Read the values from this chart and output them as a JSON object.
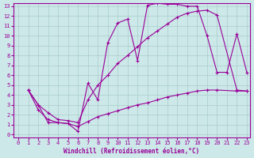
{
  "xlabel": "Windchill (Refroidissement éolien,°C)",
  "bg_color": "#cce8e8",
  "line_color": "#990099",
  "grid_color": "#aacccc",
  "xlim": [
    -0.5,
    23.3
  ],
  "ylim": [
    -0.3,
    13.3
  ],
  "xticks": [
    0,
    1,
    2,
    3,
    4,
    5,
    6,
    7,
    8,
    9,
    10,
    11,
    12,
    13,
    14,
    15,
    16,
    17,
    18,
    19,
    20,
    21,
    22,
    23
  ],
  "yticks": [
    0,
    1,
    2,
    3,
    4,
    5,
    6,
    7,
    8,
    9,
    10,
    11,
    12,
    13
  ],
  "line1_x": [
    1,
    2,
    3,
    4,
    5,
    6,
    7,
    8,
    9,
    10,
    11,
    12,
    13,
    14,
    15,
    16,
    17,
    18,
    19,
    20,
    21,
    22,
    23
  ],
  "line1_y": [
    4.5,
    3.0,
    1.2,
    1.2,
    1.1,
    0.3,
    5.2,
    3.5,
    9.3,
    11.3,
    11.7,
    7.5,
    13.1,
    13.3,
    13.2,
    13.2,
    13.0,
    13.0,
    10.0,
    6.3,
    6.3,
    10.2,
    6.3
  ],
  "line2_x": [
    1,
    2,
    3,
    4,
    5,
    6,
    7,
    8,
    9,
    10,
    11,
    12,
    13,
    14,
    15,
    16,
    17,
    18,
    19,
    20,
    22,
    23
  ],
  "line2_y": [
    4.5,
    3.0,
    2.2,
    1.5,
    1.4,
    1.2,
    3.5,
    5.0,
    6.0,
    7.2,
    8.0,
    8.9,
    9.8,
    10.5,
    11.2,
    11.9,
    12.3,
    12.5,
    12.6,
    12.1,
    4.5,
    4.4
  ],
  "line3_x": [
    1,
    2,
    3,
    4,
    5,
    6,
    7,
    8,
    9,
    10,
    11,
    12,
    13,
    14,
    15,
    16,
    17,
    18,
    19,
    20,
    22,
    23
  ],
  "line3_y": [
    4.5,
    2.5,
    1.5,
    1.2,
    1.1,
    0.8,
    1.3,
    1.8,
    2.1,
    2.4,
    2.7,
    3.0,
    3.2,
    3.5,
    3.8,
    4.0,
    4.2,
    4.4,
    4.5,
    4.5,
    4.4,
    4.4
  ],
  "marker": "+",
  "markersize": 3,
  "linewidth": 0.8
}
